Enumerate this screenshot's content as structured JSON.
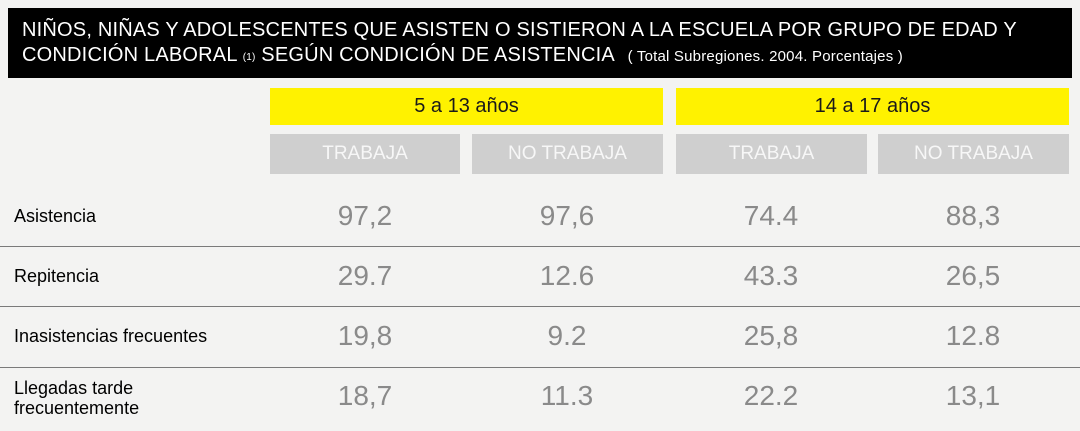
{
  "title": {
    "line1": "NIÑOS, NIÑAS Y ADOLESCENTES QUE ASISTEN O SISTIERON A LA ESCUELA POR GRUPO DE EDAD Y",
    "line2_main": "CONDICIÓN LABORAL",
    "line2_note": "(1)",
    "line2_rest": "SEGÚN CONDICIÓN DE ASISTENCIA",
    "subtitle": "( Total Subregiones. 2004. Porcentajes )"
  },
  "chart_data": {
    "type": "table",
    "groups": [
      "5 a 13 años",
      "14 a 17 años"
    ],
    "columns": [
      "TRABAJA",
      "NO TRABAJA",
      "TRABAJA",
      "NO TRABAJA"
    ],
    "rows": [
      {
        "label": "Asistencia",
        "values": [
          "97,2",
          "97,6",
          "74.4",
          "88,3"
        ]
      },
      {
        "label": "Repitencia",
        "values": [
          "29.7",
          "12.6",
          "43.3",
          "26,5"
        ]
      },
      {
        "label": "Inasistencias frecuentes",
        "values": [
          "19,8",
          "9.2",
          "25,8",
          "12.8"
        ]
      },
      {
        "label": "Llegadas tarde frecuentemente",
        "values": [
          "18,7",
          "11.3",
          "22.2",
          "13,1"
        ]
      }
    ]
  },
  "colors": {
    "title_bg": "#000000",
    "group_header_bg": "#fff200",
    "column_header_bg": "#cfcfcf",
    "value_text": "#8a8a8a",
    "background": "#f3f3f2"
  }
}
